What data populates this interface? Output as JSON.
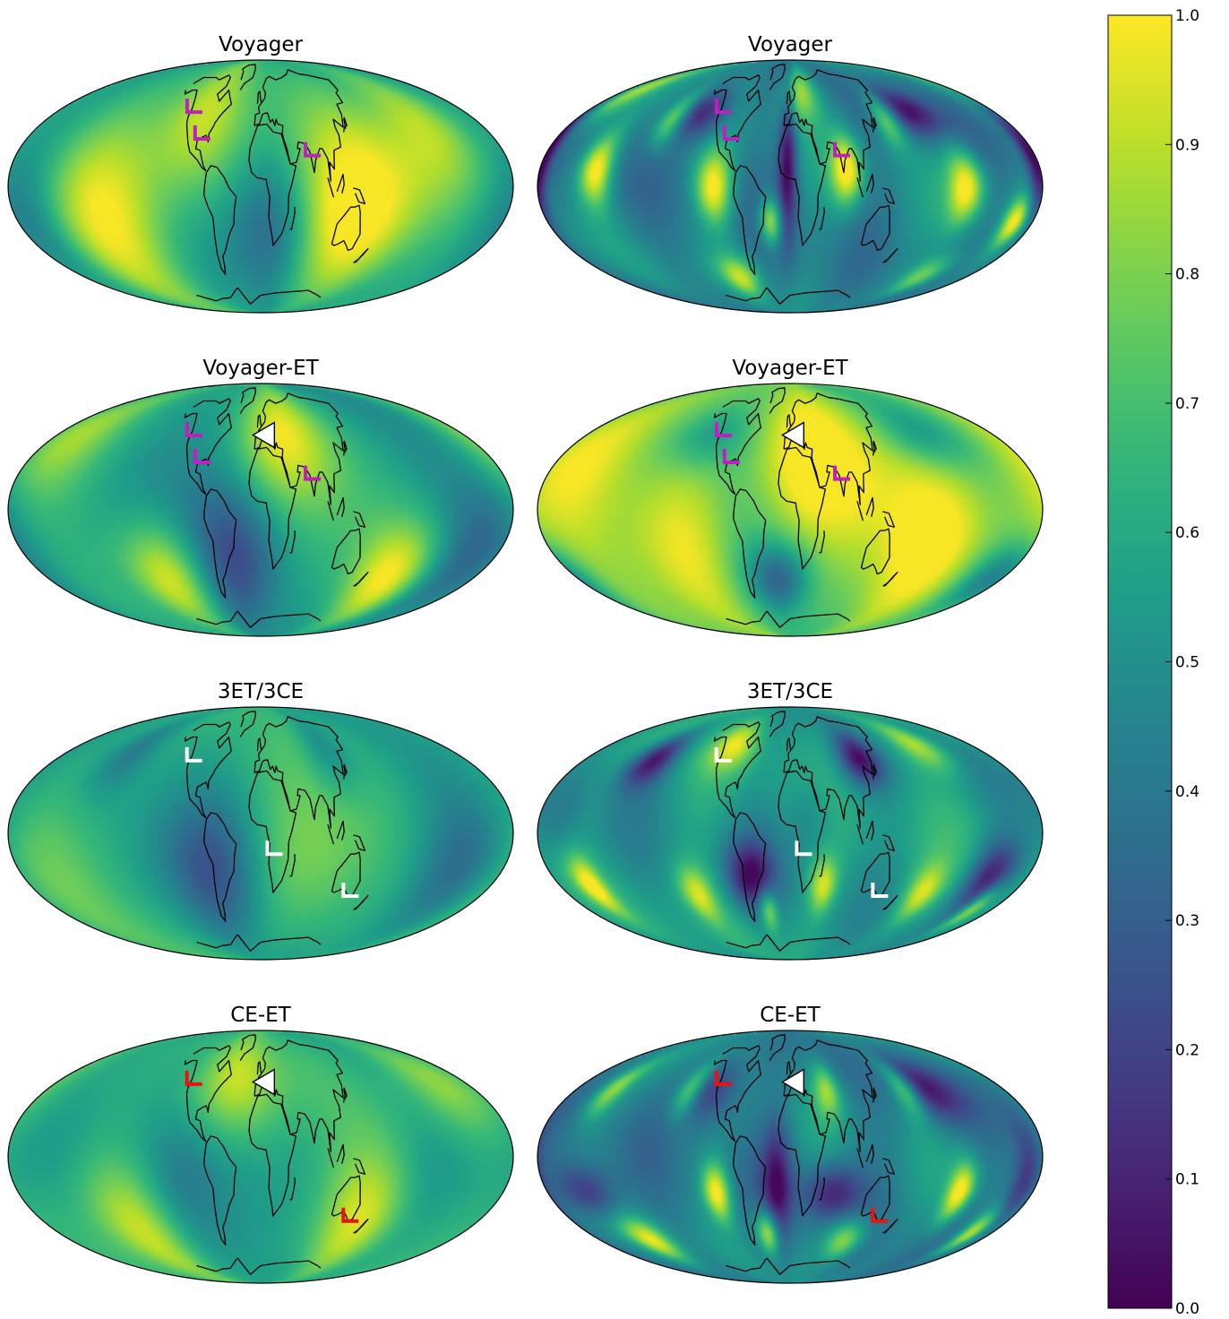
{
  "chart_data": {
    "type": "heatmap",
    "projection": "mollweide",
    "layout": "4 rows x 2 columns",
    "panels": [
      {
        "title": "Voyager",
        "markers": [
          {
            "type": "L-detector",
            "color": "#c020c0",
            "lon": -120,
            "lat": 47
          },
          {
            "type": "L-detector",
            "color": "#c020c0",
            "lon": -91,
            "lat": 30
          },
          {
            "type": "L-detector",
            "color": "#c020c0",
            "lon": 77,
            "lat": 20
          }
        ],
        "hotspots": [
          {
            "lon": -95,
            "lat": 35,
            "sx": 50,
            "sy": 35,
            "amp": 0.35
          },
          {
            "lon": 140,
            "lat": -15,
            "sx": 60,
            "sy": 40,
            "amp": 0.4
          },
          {
            "lon": 20,
            "lat": -20,
            "sx": 40,
            "sy": 30,
            "amp": -0.25
          }
        ],
        "base": 0.6,
        "freq": 1.0
      },
      {
        "title": "Voyager",
        "markers": [
          {
            "type": "L-detector",
            "color": "#c020c0",
            "lon": -120,
            "lat": 47
          },
          {
            "type": "L-detector",
            "color": "#c020c0",
            "lon": -91,
            "lat": 30
          },
          {
            "type": "L-detector",
            "color": "#c020c0",
            "lon": 77,
            "lat": 20
          }
        ],
        "hotspots": [
          {
            "lon": -110,
            "lat": 0,
            "sx": 18,
            "sy": 15,
            "amp": 0.55
          },
          {
            "lon": -30,
            "lat": -20,
            "sx": 12,
            "sy": 10,
            "amp": 0.5
          },
          {
            "lon": 80,
            "lat": 10,
            "sx": 16,
            "sy": 14,
            "amp": 0.55
          },
          {
            "lon": 20,
            "lat": 60,
            "sx": 25,
            "sy": 15,
            "amp": 0.4
          },
          {
            "lon": 160,
            "lat": 40,
            "sx": 15,
            "sy": 12,
            "amp": 0.4
          },
          {
            "lon": -100,
            "lat": -55,
            "sx": 25,
            "sy": 10,
            "amp": 0.4
          },
          {
            "lon": -5,
            "lat": 15,
            "sx": 10,
            "sy": 30,
            "amp": -0.45
          },
          {
            "lon": -150,
            "lat": 45,
            "sx": 30,
            "sy": 12,
            "amp": -0.4
          }
        ],
        "base": 0.45,
        "freq": 2.2
      },
      {
        "title": "Voyager-ET",
        "markers": [
          {
            "type": "L-detector",
            "color": "#c020c0",
            "lon": -120,
            "lat": 47
          },
          {
            "type": "L-detector",
            "color": "#c020c0",
            "lon": -91,
            "lat": 30
          },
          {
            "type": "L-detector",
            "color": "#c020c0",
            "lon": 77,
            "lat": 20
          },
          {
            "type": "triangle",
            "color": "#ffffff",
            "lon": 10,
            "lat": 45
          }
        ],
        "hotspots": [
          {
            "lon": 30,
            "lat": 45,
            "sx": 55,
            "sy": 30,
            "amp": 0.35
          },
          {
            "lon": -150,
            "lat": -40,
            "sx": 45,
            "sy": 25,
            "amp": 0.45
          },
          {
            "lon": -40,
            "lat": -25,
            "sx": 45,
            "sy": 30,
            "amp": -0.25
          }
        ],
        "base": 0.55,
        "freq": 1.0
      },
      {
        "title": "Voyager-ET",
        "markers": [
          {
            "type": "L-detector",
            "color": "#c020c0",
            "lon": -120,
            "lat": 47
          },
          {
            "type": "L-detector",
            "color": "#c020c0",
            "lon": -91,
            "lat": 30
          },
          {
            "type": "L-detector",
            "color": "#c020c0",
            "lon": 77,
            "lat": 20
          },
          {
            "type": "triangle",
            "color": "#ffffff",
            "lon": 10,
            "lat": 45
          }
        ],
        "hotspots": [
          {
            "lon": 30,
            "lat": 30,
            "sx": 60,
            "sy": 35,
            "amp": 0.3
          },
          {
            "lon": -150,
            "lat": -20,
            "sx": 50,
            "sy": 40,
            "amp": 0.35
          },
          {
            "lon": -20,
            "lat": -40,
            "sx": 35,
            "sy": 15,
            "amp": -0.35
          },
          {
            "lon": -140,
            "lat": 45,
            "sx": 45,
            "sy": 15,
            "amp": -0.2
          }
        ],
        "base": 0.72,
        "freq": 1.0
      },
      {
        "title": "3ET/3CE",
        "markers": [
          {
            "type": "L-detector",
            "color": "#ffffff",
            "lon": -119,
            "lat": 46
          },
          {
            "type": "L-detector",
            "color": "#ffffff",
            "lon": 20,
            "lat": -10
          },
          {
            "type": "L-detector",
            "color": "#ffffff",
            "lon": 145,
            "lat": -35
          }
        ],
        "hotspots": [
          {
            "lon": -70,
            "lat": -20,
            "sx": 45,
            "sy": 30,
            "amp": -0.25
          },
          {
            "lon": 120,
            "lat": 50,
            "sx": 30,
            "sy": 20,
            "amp": -0.2
          },
          {
            "lon": 40,
            "lat": -20,
            "sx": 50,
            "sy": 30,
            "amp": 0.1
          }
        ],
        "base": 0.62,
        "freq": 1.0
      },
      {
        "title": "3ET/3CE",
        "markers": [
          {
            "type": "L-detector",
            "color": "#ffffff",
            "lon": -119,
            "lat": 46
          },
          {
            "type": "L-detector",
            "color": "#ffffff",
            "lon": 20,
            "lat": -10
          },
          {
            "type": "L-detector",
            "color": "#ffffff",
            "lon": 145,
            "lat": -35
          }
        ],
        "hotspots": [
          {
            "lon": -60,
            "lat": -25,
            "sx": 25,
            "sy": 15,
            "amp": -0.45
          },
          {
            "lon": 120,
            "lat": 45,
            "sx": 25,
            "sy": 12,
            "amp": -0.45
          },
          {
            "lon": -110,
            "lat": 55,
            "sx": 30,
            "sy": 12,
            "amp": 0.35
          },
          {
            "lon": 50,
            "lat": -30,
            "sx": 15,
            "sy": 12,
            "amp": 0.4
          },
          {
            "lon": -150,
            "lat": -35,
            "sx": 18,
            "sy": 12,
            "amp": 0.35
          },
          {
            "lon": -40,
            "lat": -45,
            "sx": 12,
            "sy": 10,
            "amp": 0.4
          },
          {
            "lon": 30,
            "lat": 10,
            "sx": 25,
            "sy": 20,
            "amp": -0.15
          }
        ],
        "base": 0.55,
        "freq": 2.0
      },
      {
        "title": "CE-ET",
        "markers": [
          {
            "type": "L-detector",
            "color": "#ee1111",
            "lon": -119,
            "lat": 46
          },
          {
            "type": "L-detector",
            "color": "#ee1111",
            "lon": 146,
            "lat": -36
          },
          {
            "type": "triangle",
            "color": "#ffffff",
            "lon": 10,
            "lat": 45
          }
        ],
        "hotspots": [
          {
            "lon": -50,
            "lat": 45,
            "sx": 50,
            "sy": 25,
            "amp": 0.3
          },
          {
            "lon": 160,
            "lat": -40,
            "sx": 45,
            "sy": 30,
            "amp": 0.3
          },
          {
            "lon": 60,
            "lat": 0,
            "sx": 50,
            "sy": 30,
            "amp": -0.12
          },
          {
            "lon": -120,
            "lat": -10,
            "sx": 40,
            "sy": 25,
            "amp": -0.1
          }
        ],
        "base": 0.62,
        "freq": 1.0
      },
      {
        "title": "CE-ET",
        "markers": [
          {
            "type": "L-detector",
            "color": "#ee1111",
            "lon": -119,
            "lat": 46
          },
          {
            "type": "L-detector",
            "color": "#ee1111",
            "lon": 146,
            "lat": -36
          },
          {
            "type": "triangle",
            "color": "#ffffff",
            "lon": 10,
            "lat": 45
          }
        ],
        "hotspots": [
          {
            "lon": -110,
            "lat": -20,
            "sx": 14,
            "sy": 12,
            "amp": 0.55
          },
          {
            "lon": -40,
            "lat": -45,
            "sx": 14,
            "sy": 10,
            "amp": 0.5
          },
          {
            "lon": 100,
            "lat": -50,
            "sx": 25,
            "sy": 10,
            "amp": 0.45
          },
          {
            "lon": 60,
            "lat": 40,
            "sx": 15,
            "sy": 12,
            "amp": 0.35
          },
          {
            "lon": -170,
            "lat": 40,
            "sx": 14,
            "sy": 12,
            "amp": 0.35
          },
          {
            "lon": -20,
            "lat": -15,
            "sx": 15,
            "sy": 25,
            "amp": -0.35
          },
          {
            "lon": 60,
            "lat": -20,
            "sx": 30,
            "sy": 12,
            "amp": -0.35
          },
          {
            "lon": -130,
            "lat": 40,
            "sx": 30,
            "sy": 15,
            "amp": -0.35
          }
        ],
        "base": 0.45,
        "freq": 2.2
      }
    ],
    "colorbar": {
      "colormap": "viridis",
      "range": [
        0.0,
        1.0
      ],
      "ticks": [
        "0.0",
        "0.1",
        "0.2",
        "0.3",
        "0.4",
        "0.5",
        "0.6",
        "0.7",
        "0.8",
        "0.9",
        "1.0"
      ]
    }
  }
}
